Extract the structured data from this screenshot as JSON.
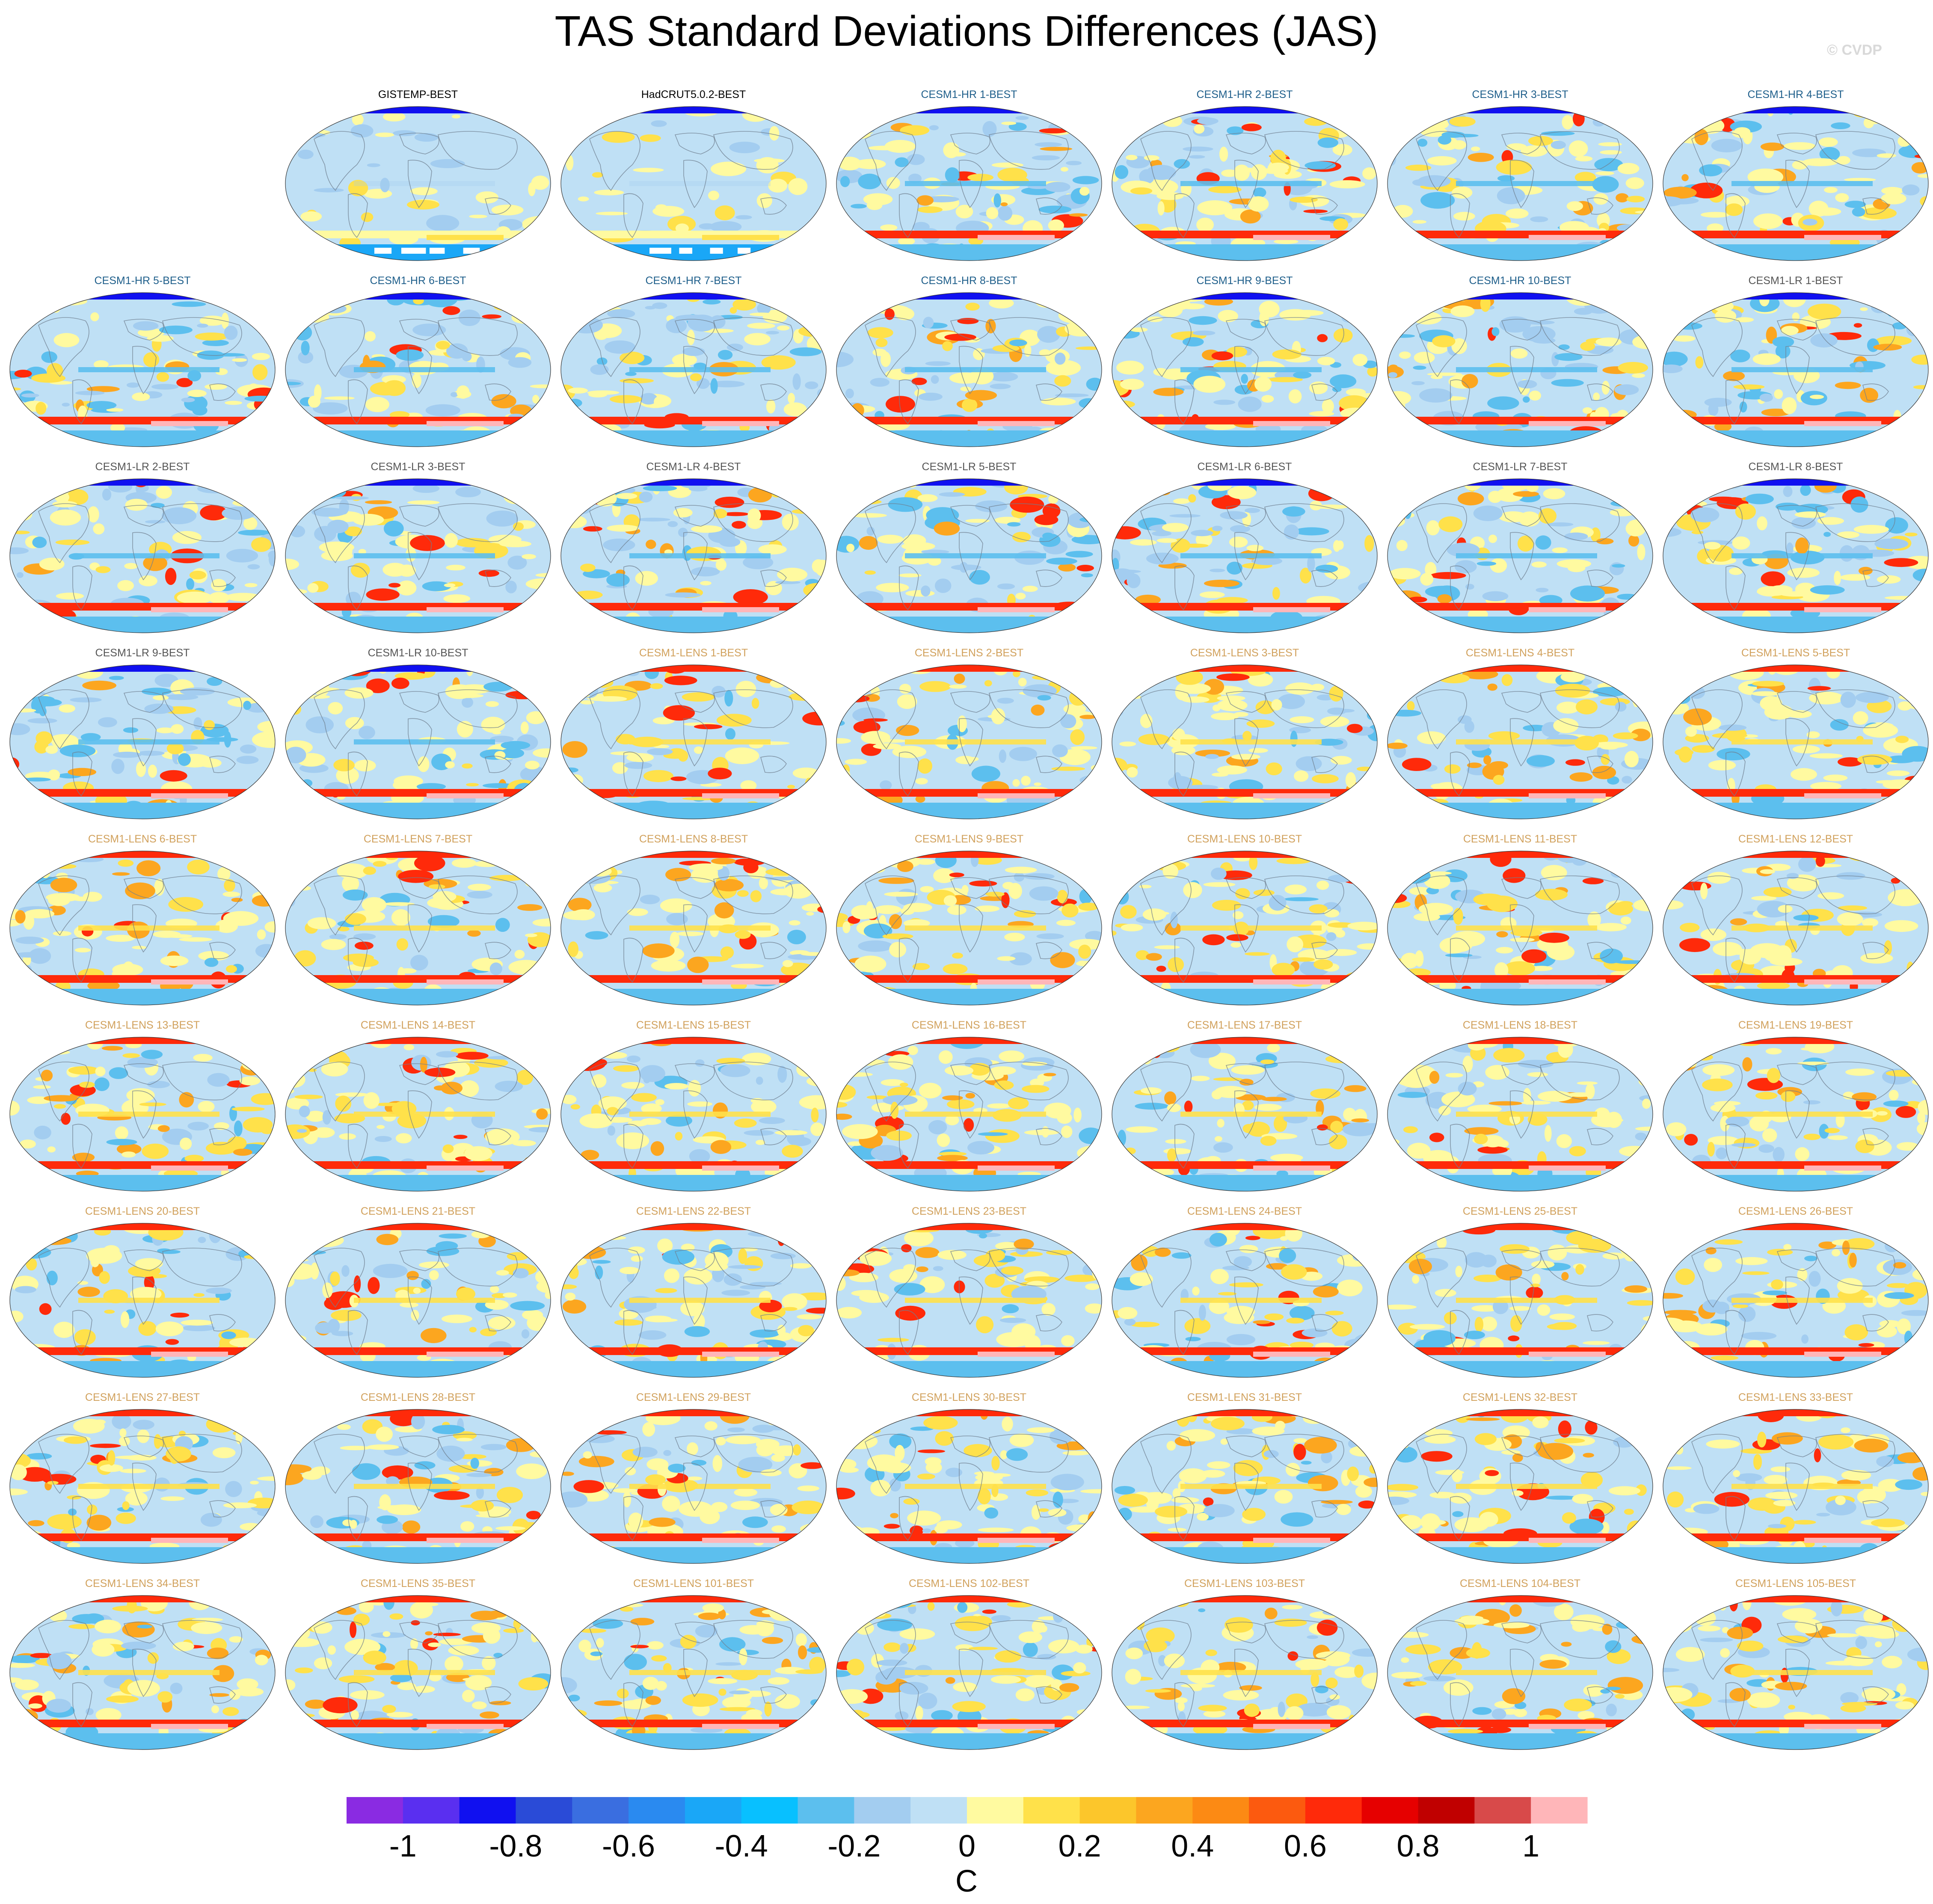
{
  "title": "TAS Standard Deviations Differences (JAS)",
  "credit": "© CVDP",
  "panel_label_colors": {
    "obs": "#000000",
    "hr": "#1f5f8b",
    "lr": "#555555",
    "lens": "#d1a15c"
  },
  "panels": [
    {
      "label": "GISTEMP-BEST",
      "group": "obs"
    },
    {
      "label": "HadCRUT5.0.2-BEST",
      "group": "obs"
    },
    {
      "label": "CESM1-HR 1-BEST",
      "group": "hr"
    },
    {
      "label": "CESM1-HR 2-BEST",
      "group": "hr"
    },
    {
      "label": "CESM1-HR 3-BEST",
      "group": "hr"
    },
    {
      "label": "CESM1-HR 4-BEST",
      "group": "hr"
    },
    {
      "label": "CESM1-HR 5-BEST",
      "group": "hr"
    },
    {
      "label": "CESM1-HR 6-BEST",
      "group": "hr"
    },
    {
      "label": "CESM1-HR 7-BEST",
      "group": "hr"
    },
    {
      "label": "CESM1-HR 8-BEST",
      "group": "hr"
    },
    {
      "label": "CESM1-HR 9-BEST",
      "group": "hr"
    },
    {
      "label": "CESM1-HR 10-BEST",
      "group": "hr"
    },
    {
      "label": "CESM1-LR 1-BEST",
      "group": "lr"
    },
    {
      "label": "CESM1-LR 2-BEST",
      "group": "lr"
    },
    {
      "label": "CESM1-LR 3-BEST",
      "group": "lr"
    },
    {
      "label": "CESM1-LR 4-BEST",
      "group": "lr"
    },
    {
      "label": "CESM1-LR 5-BEST",
      "group": "lr"
    },
    {
      "label": "CESM1-LR 6-BEST",
      "group": "lr"
    },
    {
      "label": "CESM1-LR 7-BEST",
      "group": "lr"
    },
    {
      "label": "CESM1-LR 8-BEST",
      "group": "lr"
    },
    {
      "label": "CESM1-LR 9-BEST",
      "group": "lr"
    },
    {
      "label": "CESM1-LR 10-BEST",
      "group": "lr"
    },
    {
      "label": "CESM1-LENS 1-BEST",
      "group": "lens"
    },
    {
      "label": "CESM1-LENS 2-BEST",
      "group": "lens"
    },
    {
      "label": "CESM1-LENS 3-BEST",
      "group": "lens"
    },
    {
      "label": "CESM1-LENS 4-BEST",
      "group": "lens"
    },
    {
      "label": "CESM1-LENS 5-BEST",
      "group": "lens"
    },
    {
      "label": "CESM1-LENS 6-BEST",
      "group": "lens"
    },
    {
      "label": "CESM1-LENS 7-BEST",
      "group": "lens"
    },
    {
      "label": "CESM1-LENS 8-BEST",
      "group": "lens"
    },
    {
      "label": "CESM1-LENS 9-BEST",
      "group": "lens"
    },
    {
      "label": "CESM1-LENS 10-BEST",
      "group": "lens"
    },
    {
      "label": "CESM1-LENS 11-BEST",
      "group": "lens"
    },
    {
      "label": "CESM1-LENS 12-BEST",
      "group": "lens"
    },
    {
      "label": "CESM1-LENS 13-BEST",
      "group": "lens"
    },
    {
      "label": "CESM1-LENS 14-BEST",
      "group": "lens"
    },
    {
      "label": "CESM1-LENS 15-BEST",
      "group": "lens"
    },
    {
      "label": "CESM1-LENS 16-BEST",
      "group": "lens"
    },
    {
      "label": "CESM1-LENS 17-BEST",
      "group": "lens"
    },
    {
      "label": "CESM1-LENS 18-BEST",
      "group": "lens"
    },
    {
      "label": "CESM1-LENS 19-BEST",
      "group": "lens"
    },
    {
      "label": "CESM1-LENS 20-BEST",
      "group": "lens"
    },
    {
      "label": "CESM1-LENS 21-BEST",
      "group": "lens"
    },
    {
      "label": "CESM1-LENS 22-BEST",
      "group": "lens"
    },
    {
      "label": "CESM1-LENS 23-BEST",
      "group": "lens"
    },
    {
      "label": "CESM1-LENS 24-BEST",
      "group": "lens"
    },
    {
      "label": "CESM1-LENS 25-BEST",
      "group": "lens"
    },
    {
      "label": "CESM1-LENS 26-BEST",
      "group": "lens"
    },
    {
      "label": "CESM1-LENS 27-BEST",
      "group": "lens"
    },
    {
      "label": "CESM1-LENS 28-BEST",
      "group": "lens"
    },
    {
      "label": "CESM1-LENS 29-BEST",
      "group": "lens"
    },
    {
      "label": "CESM1-LENS 30-BEST",
      "group": "lens"
    },
    {
      "label": "CESM1-LENS 31-BEST",
      "group": "lens"
    },
    {
      "label": "CESM1-LENS 32-BEST",
      "group": "lens"
    },
    {
      "label": "CESM1-LENS 33-BEST",
      "group": "lens"
    },
    {
      "label": "CESM1-LENS 34-BEST",
      "group": "lens"
    },
    {
      "label": "CESM1-LENS 35-BEST",
      "group": "lens"
    },
    {
      "label": "CESM1-LENS 101-BEST",
      "group": "lens"
    },
    {
      "label": "CESM1-LENS 102-BEST",
      "group": "lens"
    },
    {
      "label": "CESM1-LENS 103-BEST",
      "group": "lens"
    },
    {
      "label": "CESM1-LENS 104-BEST",
      "group": "lens"
    },
    {
      "label": "CESM1-LENS 105-BEST",
      "group": "lens"
    }
  ],
  "colorbar": {
    "units": "C",
    "colors": [
      "#8a2be2",
      "#5a2ff0",
      "#1010f0",
      "#2a4bd7",
      "#3a6ee0",
      "#2a8af0",
      "#1aa7f7",
      "#08c0ff",
      "#5cbfee",
      "#a3cdf0",
      "#bfe0f5",
      "#fffaa0",
      "#ffe14a",
      "#fcc62b",
      "#fca61f",
      "#fc8a14",
      "#fc5a0f",
      "#ff2a0a",
      "#e60000",
      "#c00000",
      "#d84a4a",
      "#ffb6b9"
    ],
    "tick_labels": [
      "-1",
      "-0.8",
      "-0.6",
      "-0.4",
      "-0.2",
      "0",
      "0.2",
      "0.4",
      "0.6",
      "0.8",
      "1"
    ]
  }
}
